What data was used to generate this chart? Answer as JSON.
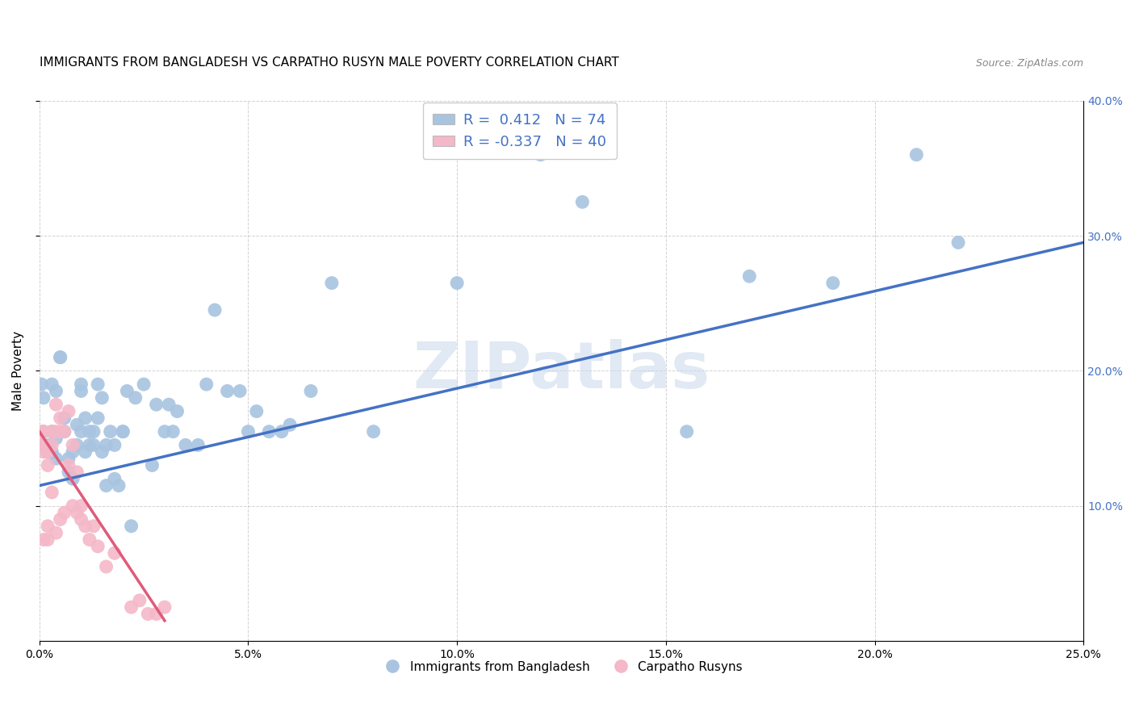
{
  "title": "IMMIGRANTS FROM BANGLADESH VS CARPATHO RUSYN MALE POVERTY CORRELATION CHART",
  "source": "Source: ZipAtlas.com",
  "ylabel": "Male Poverty",
  "xlim": [
    0.0,
    0.25
  ],
  "ylim": [
    0.0,
    0.4
  ],
  "xtick_vals": [
    0.0,
    0.05,
    0.1,
    0.15,
    0.2,
    0.25
  ],
  "ytick_vals": [
    0.1,
    0.2,
    0.3,
    0.4
  ],
  "blue_scatter_x": [
    0.0005,
    0.001,
    0.001,
    0.002,
    0.002,
    0.003,
    0.003,
    0.003,
    0.004,
    0.004,
    0.004,
    0.005,
    0.005,
    0.006,
    0.006,
    0.007,
    0.007,
    0.008,
    0.008,
    0.009,
    0.009,
    0.01,
    0.01,
    0.01,
    0.011,
    0.011,
    0.012,
    0.012,
    0.013,
    0.013,
    0.014,
    0.014,
    0.015,
    0.015,
    0.016,
    0.016,
    0.017,
    0.018,
    0.018,
    0.019,
    0.02,
    0.02,
    0.021,
    0.022,
    0.023,
    0.025,
    0.027,
    0.028,
    0.03,
    0.031,
    0.032,
    0.033,
    0.035,
    0.038,
    0.04,
    0.042,
    0.045,
    0.048,
    0.05,
    0.052,
    0.055,
    0.058,
    0.06,
    0.065,
    0.07,
    0.08,
    0.1,
    0.12,
    0.13,
    0.155,
    0.17,
    0.19,
    0.21,
    0.22
  ],
  "blue_scatter_y": [
    0.19,
    0.18,
    0.155,
    0.145,
    0.14,
    0.155,
    0.14,
    0.19,
    0.185,
    0.15,
    0.135,
    0.21,
    0.21,
    0.155,
    0.165,
    0.135,
    0.125,
    0.14,
    0.12,
    0.16,
    0.145,
    0.19,
    0.185,
    0.155,
    0.165,
    0.14,
    0.145,
    0.155,
    0.145,
    0.155,
    0.19,
    0.165,
    0.18,
    0.14,
    0.145,
    0.115,
    0.155,
    0.145,
    0.12,
    0.115,
    0.155,
    0.155,
    0.185,
    0.085,
    0.18,
    0.19,
    0.13,
    0.175,
    0.155,
    0.175,
    0.155,
    0.17,
    0.145,
    0.145,
    0.19,
    0.245,
    0.185,
    0.185,
    0.155,
    0.17,
    0.155,
    0.155,
    0.16,
    0.185,
    0.265,
    0.155,
    0.265,
    0.36,
    0.325,
    0.155,
    0.27,
    0.265,
    0.36,
    0.295
  ],
  "pink_scatter_x": [
    0.0003,
    0.0005,
    0.0008,
    0.001,
    0.001,
    0.001,
    0.002,
    0.002,
    0.002,
    0.002,
    0.003,
    0.003,
    0.003,
    0.004,
    0.004,
    0.004,
    0.005,
    0.005,
    0.005,
    0.006,
    0.006,
    0.007,
    0.007,
    0.008,
    0.008,
    0.009,
    0.009,
    0.01,
    0.01,
    0.011,
    0.012,
    0.013,
    0.014,
    0.016,
    0.018,
    0.022,
    0.024,
    0.026,
    0.028,
    0.03
  ],
  "pink_scatter_y": [
    0.145,
    0.145,
    0.155,
    0.155,
    0.14,
    0.075,
    0.14,
    0.13,
    0.085,
    0.075,
    0.155,
    0.145,
    0.11,
    0.175,
    0.155,
    0.08,
    0.165,
    0.155,
    0.09,
    0.155,
    0.095,
    0.17,
    0.13,
    0.145,
    0.1,
    0.125,
    0.095,
    0.1,
    0.09,
    0.085,
    0.075,
    0.085,
    0.07,
    0.055,
    0.065,
    0.025,
    0.03,
    0.02,
    0.02,
    0.025
  ],
  "blue_line_x": [
    0.0,
    0.25
  ],
  "blue_line_y": [
    0.115,
    0.295
  ],
  "pink_line_x": [
    0.0,
    0.03
  ],
  "pink_line_y": [
    0.155,
    0.015
  ],
  "blue_color": "#a8c4e0",
  "pink_color": "#f4b8c8",
  "blue_line_color": "#4472c4",
  "pink_line_color": "#e05a7a",
  "R_blue": "0.412",
  "N_blue": "74",
  "R_pink": "-0.337",
  "N_pink": "40",
  "legend_blue_label": "Immigrants from Bangladesh",
  "legend_pink_label": "Carpatho Rusyns",
  "watermark": "ZIPatlas",
  "background_color": "#ffffff",
  "title_fontsize": 11,
  "axis_label_color": "#4472c4"
}
